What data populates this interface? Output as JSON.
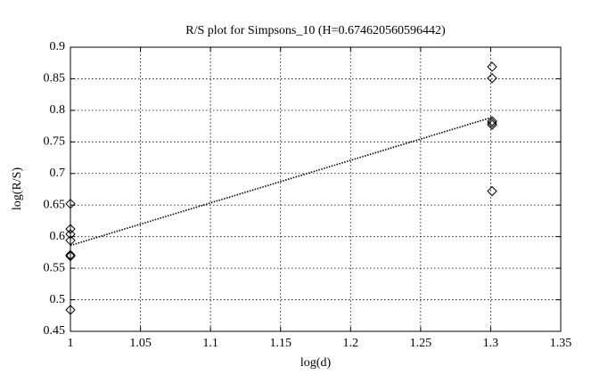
{
  "chart_data": {
    "type": "scatter",
    "title": "R/S plot for Simpsons_10 (H=0.674620560596442)",
    "x_label": "log(d)",
    "y_label": "log(R/S)",
    "xlim": [
      1,
      1.35
    ],
    "ylim": [
      0.45,
      0.9
    ],
    "xticks": [
      1,
      1.05,
      1.1,
      1.15,
      1.2,
      1.25,
      1.3,
      1.35
    ],
    "yticks": [
      0.45,
      0.5,
      0.55,
      0.6,
      0.65,
      0.7,
      0.75,
      0.8,
      0.85,
      0.9
    ],
    "grid": true,
    "series": [
      {
        "marker": "diamond",
        "color": "#000000",
        "x": [
          1,
          1,
          1,
          1,
          1,
          1,
          1,
          1.301,
          1.301,
          1.301,
          1.301,
          1.301,
          1.301
        ],
        "values": [
          0.652,
          0.612,
          0.604,
          0.594,
          0.571,
          0.569,
          0.484,
          0.869,
          0.851,
          0.783,
          0.78,
          0.777,
          0.672
        ]
      },
      {
        "line": "dotted",
        "color": "#000000",
        "x": [
          1,
          1.301
        ],
        "values": [
          0.586,
          0.789
        ]
      }
    ]
  }
}
